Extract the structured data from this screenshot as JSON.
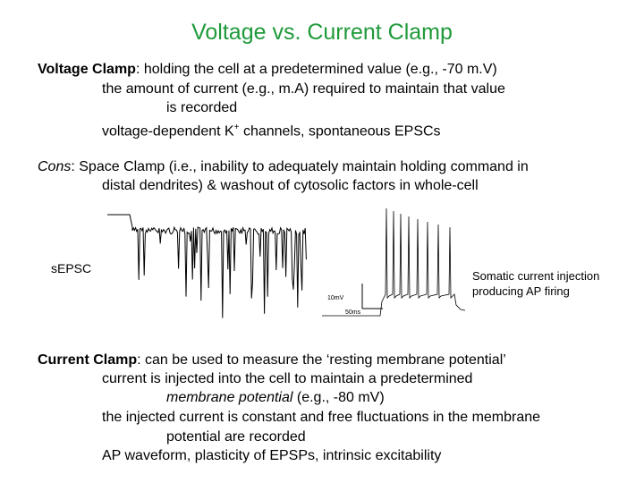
{
  "title": "Voltage vs. Current Clamp",
  "voltage_clamp": {
    "term": "Voltage Clamp",
    "line1_rest": ": holding the cell at a predetermined value (e.g., -70 m.V)",
    "line2": "the amount of current (e.g., m.A) required to maintain that value",
    "line3": "is recorded",
    "line4_a": "voltage-dependent K",
    "line4_sup": "+",
    "line4_b": " channels, spontaneous EPSCs"
  },
  "cons": {
    "term": "Cons",
    "line1_rest": ": Space Clamp (i.e., inability to adequately maintain holding command in",
    "line2": "distal dendrites) & washout of cytosolic factors in whole-cell"
  },
  "figures": {
    "sepsc_label": "sEPSC",
    "ap_caption_line1": "Somatic current injection",
    "ap_caption_line2": "producing AP firing",
    "scale_mv": "10mV",
    "scale_ms": "50ms"
  },
  "current_clamp": {
    "term": "Current Clamp",
    "line1_rest": ":  can be used to measure the ‘resting membrane potential’",
    "line2": "current is injected into the cell to maintain a predetermined",
    "line3_term": "membrane potential",
    "line3_rest": " (e.g., -80 mV)",
    "line4": "the injected current is constant and free fluctuations in the membrane",
    "line5": "potential are recorded",
    "line6": "AP waveform, plasticity of EPSPs, intrinsic excitability"
  }
}
